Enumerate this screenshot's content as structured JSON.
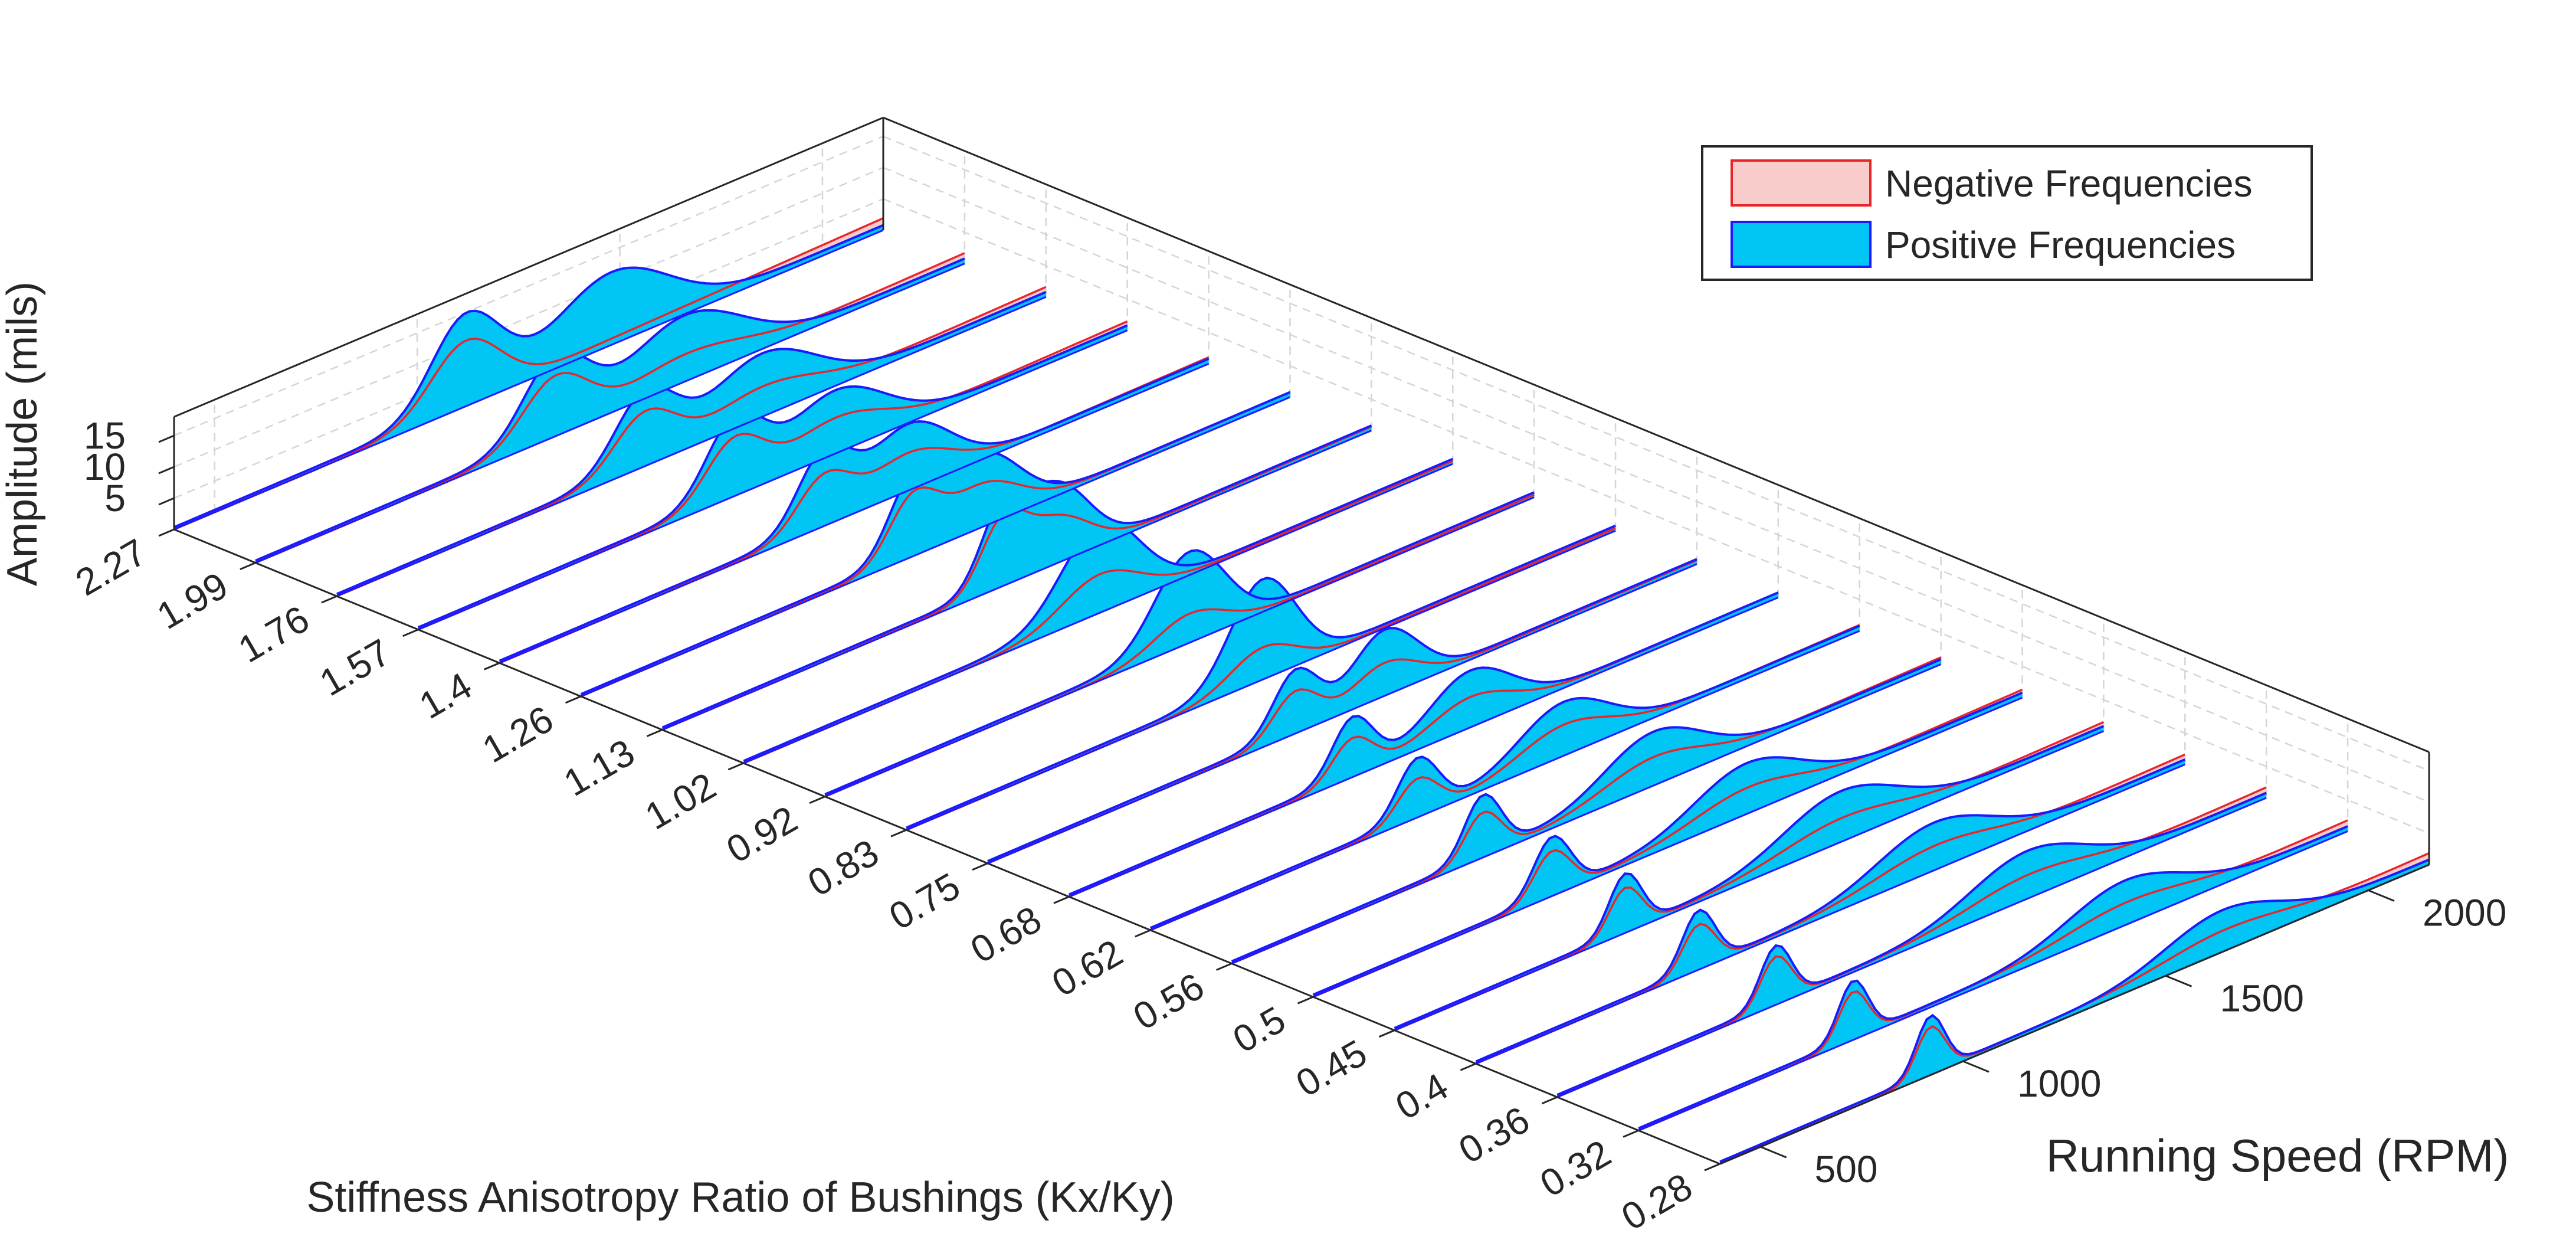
{
  "chart_data": {
    "type": "waterfall-3d",
    "xlabel": "Stiffness Anisotropy Ratio of Bushings (Kx/Ky)",
    "ylabel": "Running Speed (RPM)",
    "zlabel": "Amplitude (mils)",
    "x_categories": [
      "2.27",
      "1.99",
      "1.76",
      "1.57",
      "1.4",
      "1.26",
      "1.13",
      "1.02",
      "0.92",
      "0.83",
      "0.75",
      "0.68",
      "0.62",
      "0.56",
      "0.5",
      "0.45",
      "0.4",
      "0.36",
      "0.32",
      "0.28"
    ],
    "y_ticks": [
      500,
      1000,
      1500,
      2000
    ],
    "y_ticklabels": [
      "500",
      "1000",
      "1500",
      "2000"
    ],
    "ylim": [
      400,
      2150
    ],
    "z_ticks": [
      5,
      10,
      15
    ],
    "z_ticklabels": [
      "5",
      "10",
      "15"
    ],
    "zlim": [
      0,
      18
    ],
    "grid": true,
    "legend_position": "top-right",
    "series": [
      {
        "name": "Negative Frequencies",
        "fill": "#f9cccc",
        "edge": "#e8262a"
      },
      {
        "name": "Positive Frequencies",
        "fill": "#00c5f5",
        "edge": "#1a1aff"
      }
    ],
    "slices": [
      {
        "ratio": "2.27",
        "pos_peaks": [
          [
            1120,
            14,
            85
          ],
          [
            1480,
            11,
            140
          ]
        ],
        "neg_peaks": [
          [
            1120,
            10,
            85
          ]
        ],
        "neg_baseline": 2.4
      },
      {
        "ratio": "1.99",
        "pos_peaks": [
          [
            1140,
            12,
            80
          ],
          [
            1460,
            10,
            140
          ]
        ],
        "neg_peaks": [
          [
            1140,
            9,
            80
          ],
          [
            1460,
            3.5,
            140
          ]
        ],
        "neg_baseline": 2.1
      },
      {
        "ratio": "1.76",
        "pos_peaks": [
          [
            1160,
            11,
            75
          ],
          [
            1450,
            9.5,
            130
          ]
        ],
        "neg_peaks": [
          [
            1160,
            8,
            75
          ],
          [
            1450,
            4,
            130
          ]
        ],
        "neg_baseline": 2.0
      },
      {
        "ratio": "1.57",
        "pos_peaks": [
          [
            1180,
            11.5,
            70
          ],
          [
            1430,
            9.5,
            120
          ]
        ],
        "neg_peaks": [
          [
            1180,
            8.5,
            70
          ],
          [
            1430,
            5,
            120
          ]
        ],
        "neg_baseline": 1.8
      },
      {
        "ratio": "1.4",
        "pos_peaks": [
          [
            1200,
            11,
            65
          ],
          [
            1410,
            10,
            100
          ]
        ],
        "neg_peaks": [
          [
            1200,
            7.5,
            65
          ],
          [
            1410,
            5.5,
            100
          ]
        ],
        "neg_baseline": 1.3
      },
      {
        "ratio": "1.26",
        "pos_peaks": [
          [
            1220,
            11.5,
            60
          ],
          [
            1390,
            11,
            90
          ]
        ],
        "neg_peaks": [
          [
            1220,
            9,
            60
          ],
          [
            1390,
            6.5,
            90
          ]
        ],
        "neg_baseline": 1.0
      },
      {
        "ratio": "1.13",
        "pos_peaks": [
          [
            1240,
            11,
            55
          ],
          [
            1370,
            12,
            80
          ]
        ],
        "neg_peaks": [
          [
            1240,
            9.5,
            55
          ],
          [
            1370,
            7,
            80
          ]
        ],
        "neg_baseline": 0.8
      },
      {
        "ratio": "1.02",
        "pos_peaks": [
          [
            1280,
            14,
            95
          ]
        ],
        "neg_peaks": [
          [
            1280,
            6,
            95
          ]
        ],
        "neg_baseline": 0.6
      },
      {
        "ratio": "0.92",
        "pos_peaks": [
          [
            1300,
            14,
            85
          ]
        ],
        "neg_peaks": [
          [
            1300,
            4.5,
            85
          ]
        ],
        "neg_baseline": 0.5
      },
      {
        "ratio": "0.83",
        "pos_peaks": [
          [
            1280,
            15.5,
            80
          ]
        ],
        "neg_peaks": [
          [
            1280,
            5,
            80
          ]
        ],
        "neg_baseline": 0.5
      },
      {
        "ratio": "0.75",
        "pos_peaks": [
          [
            1160,
            9.5,
            55
          ],
          [
            1380,
            10,
            80
          ]
        ],
        "neg_peaks": [
          [
            1160,
            6.5,
            55
          ],
          [
            1380,
            5,
            80
          ]
        ],
        "neg_baseline": 0.8
      },
      {
        "ratio": "0.68",
        "pos_peaks": [
          [
            1100,
            9,
            50
          ],
          [
            1390,
            8.5,
            100
          ]
        ],
        "neg_peaks": [
          [
            1100,
            6,
            50
          ],
          [
            1390,
            4.5,
            100
          ]
        ],
        "neg_baseline": 1.0
      },
      {
        "ratio": "0.62",
        "pos_peaks": [
          [
            1060,
            9,
            50
          ],
          [
            1420,
            8,
            110
          ]
        ],
        "neg_peaks": [
          [
            1060,
            6,
            50
          ],
          [
            1420,
            4.5,
            110
          ]
        ],
        "neg_baseline": 1.2
      },
      {
        "ratio": "0.56",
        "pos_peaks": [
          [
            1020,
            9.5,
            45
          ],
          [
            1440,
            8,
            120
          ]
        ],
        "neg_peaks": [
          [
            1020,
            7,
            45
          ],
          [
            1440,
            4,
            120
          ]
        ],
        "neg_baseline": 1.4
      },
      {
        "ratio": "0.5",
        "pos_peaks": [
          [
            990,
            9,
            45
          ],
          [
            1470,
            7.5,
            130
          ]
        ],
        "neg_peaks": [
          [
            990,
            7,
            45
          ],
          [
            1470,
            3.5,
            130
          ]
        ],
        "neg_baseline": 1.6
      },
      {
        "ratio": "0.45",
        "pos_peaks": [
          [
            970,
            9,
            40
          ],
          [
            1500,
            7.5,
            140
          ]
        ],
        "neg_peaks": [
          [
            970,
            7,
            40
          ],
          [
            1500,
            3,
            140
          ]
        ],
        "neg_baseline": 1.8
      },
      {
        "ratio": "0.4",
        "pos_peaks": [
          [
            950,
            9,
            40
          ],
          [
            1530,
            7,
            140
          ]
        ],
        "neg_peaks": [
          [
            950,
            7,
            40
          ],
          [
            1530,
            3,
            140
          ]
        ],
        "neg_baseline": 2.0
      },
      {
        "ratio": "0.36",
        "pos_peaks": [
          [
            940,
            9,
            38
          ],
          [
            1560,
            7,
            140
          ]
        ],
        "neg_peaks": [
          [
            940,
            7.5,
            38
          ],
          [
            1560,
            2.8,
            140
          ]
        ],
        "neg_baseline": 2.1
      },
      {
        "ratio": "0.32",
        "pos_peaks": [
          [
            930,
            9,
            36
          ],
          [
            1600,
            6.5,
            140
          ]
        ],
        "neg_peaks": [
          [
            930,
            7.5,
            36
          ],
          [
            1600,
            2.5,
            140
          ]
        ],
        "neg_baseline": 2.2
      },
      {
        "ratio": "0.28",
        "pos_peaks": [
          [
            920,
            9,
            35
          ],
          [
            1640,
            6,
            140
          ]
        ],
        "neg_peaks": [
          [
            920,
            7.5,
            35
          ],
          [
            1640,
            2.2,
            140
          ]
        ],
        "neg_baseline": 2.3
      }
    ]
  }
}
